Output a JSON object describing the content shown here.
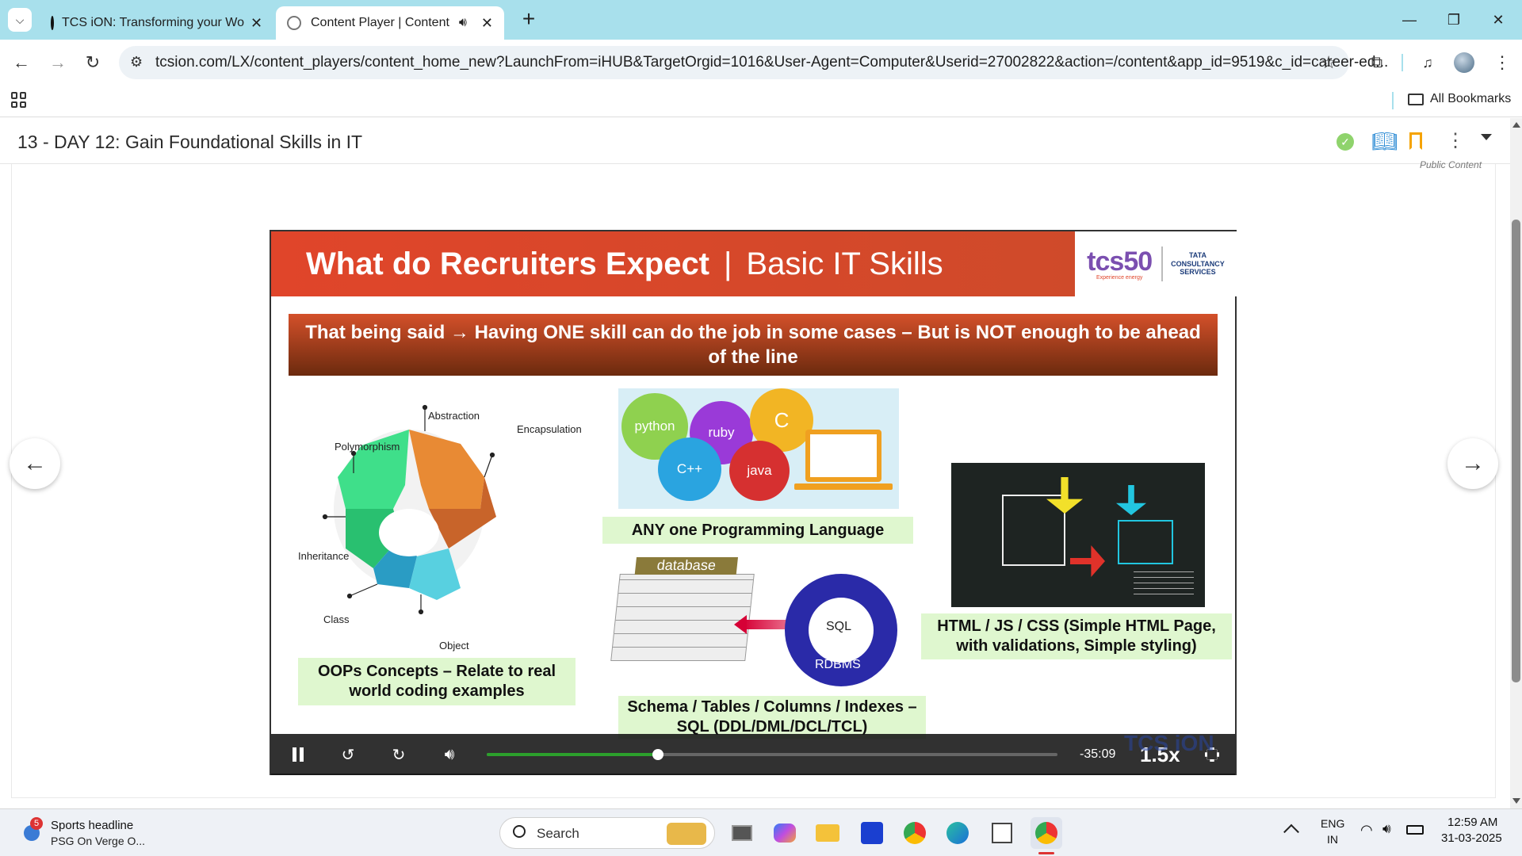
{
  "browser": {
    "tabs": [
      {
        "title": "TCS iON: Transforming your Wo"
      },
      {
        "title": "Content Player | Content"
      }
    ],
    "url": "tcsion.com/LX/content_players/content_home_new?LaunchFrom=iHUB&TargetOrgid=1016&User-Agent=Computer&Userid=27002822&action=/content&app_id=9519&c_id=career-ed...",
    "bookmarks_label": "All Bookmarks"
  },
  "course": {
    "title": "13 - DAY 12: Gain Foundational Skills in IT",
    "public_label": "Public Content"
  },
  "slide": {
    "title_bold": "What do Recruiters Expect",
    "title_sep": "|",
    "title_light": "Basic IT Skills",
    "logo_main": "tcs50",
    "logo_tag": "Experience energy",
    "logo_tata": "TATA",
    "logo_cons": "CONSULTANCY",
    "logo_serv": "SERVICES",
    "banner": "That being said → Having ONE skill can do the job in some cases – But is NOT enough to be ahead of the line",
    "oop": {
      "labels": [
        "Abstraction",
        "Encapsulation",
        "Polymorphism",
        "Inheritance",
        "Class",
        "Object"
      ],
      "caption": "OOPs Concepts – Relate to real world coding examples"
    },
    "prog": {
      "bubbles": [
        "python",
        "ruby",
        "C",
        "C++",
        "java"
      ],
      "caption": "ANY one Programming Language"
    },
    "db": {
      "table_title": "database",
      "sql_label": "SQL",
      "rdbms_label": "RDBMS",
      "caption": "Schema / Tables / Columns / Indexes – SQL (DDL/DML/DCL/TCL)"
    },
    "web": {
      "caption": "HTML / JS / CSS (Simple HTML Page, with validations, Simple styling)"
    },
    "watermark": "TCS iON"
  },
  "player": {
    "time_remaining": "-35:09",
    "speed": "1.5x",
    "progress": 0.3
  },
  "taskbar": {
    "news_title": "Sports headline",
    "news_sub": "PSG On Verge O...",
    "news_badge": "5",
    "search_label": "Search",
    "lang_top": "ENG",
    "lang_bot": "IN",
    "time": "12:59 AM",
    "date": "31-03-2025"
  },
  "colors": {
    "tabstrip": "#a8e0ec",
    "slide_orange": "#e0452a",
    "caption_green": "#dff7cf",
    "progress_green": "#2ca02c",
    "bookmark_orange": "#f5a300",
    "check_green": "#8fd36c"
  }
}
